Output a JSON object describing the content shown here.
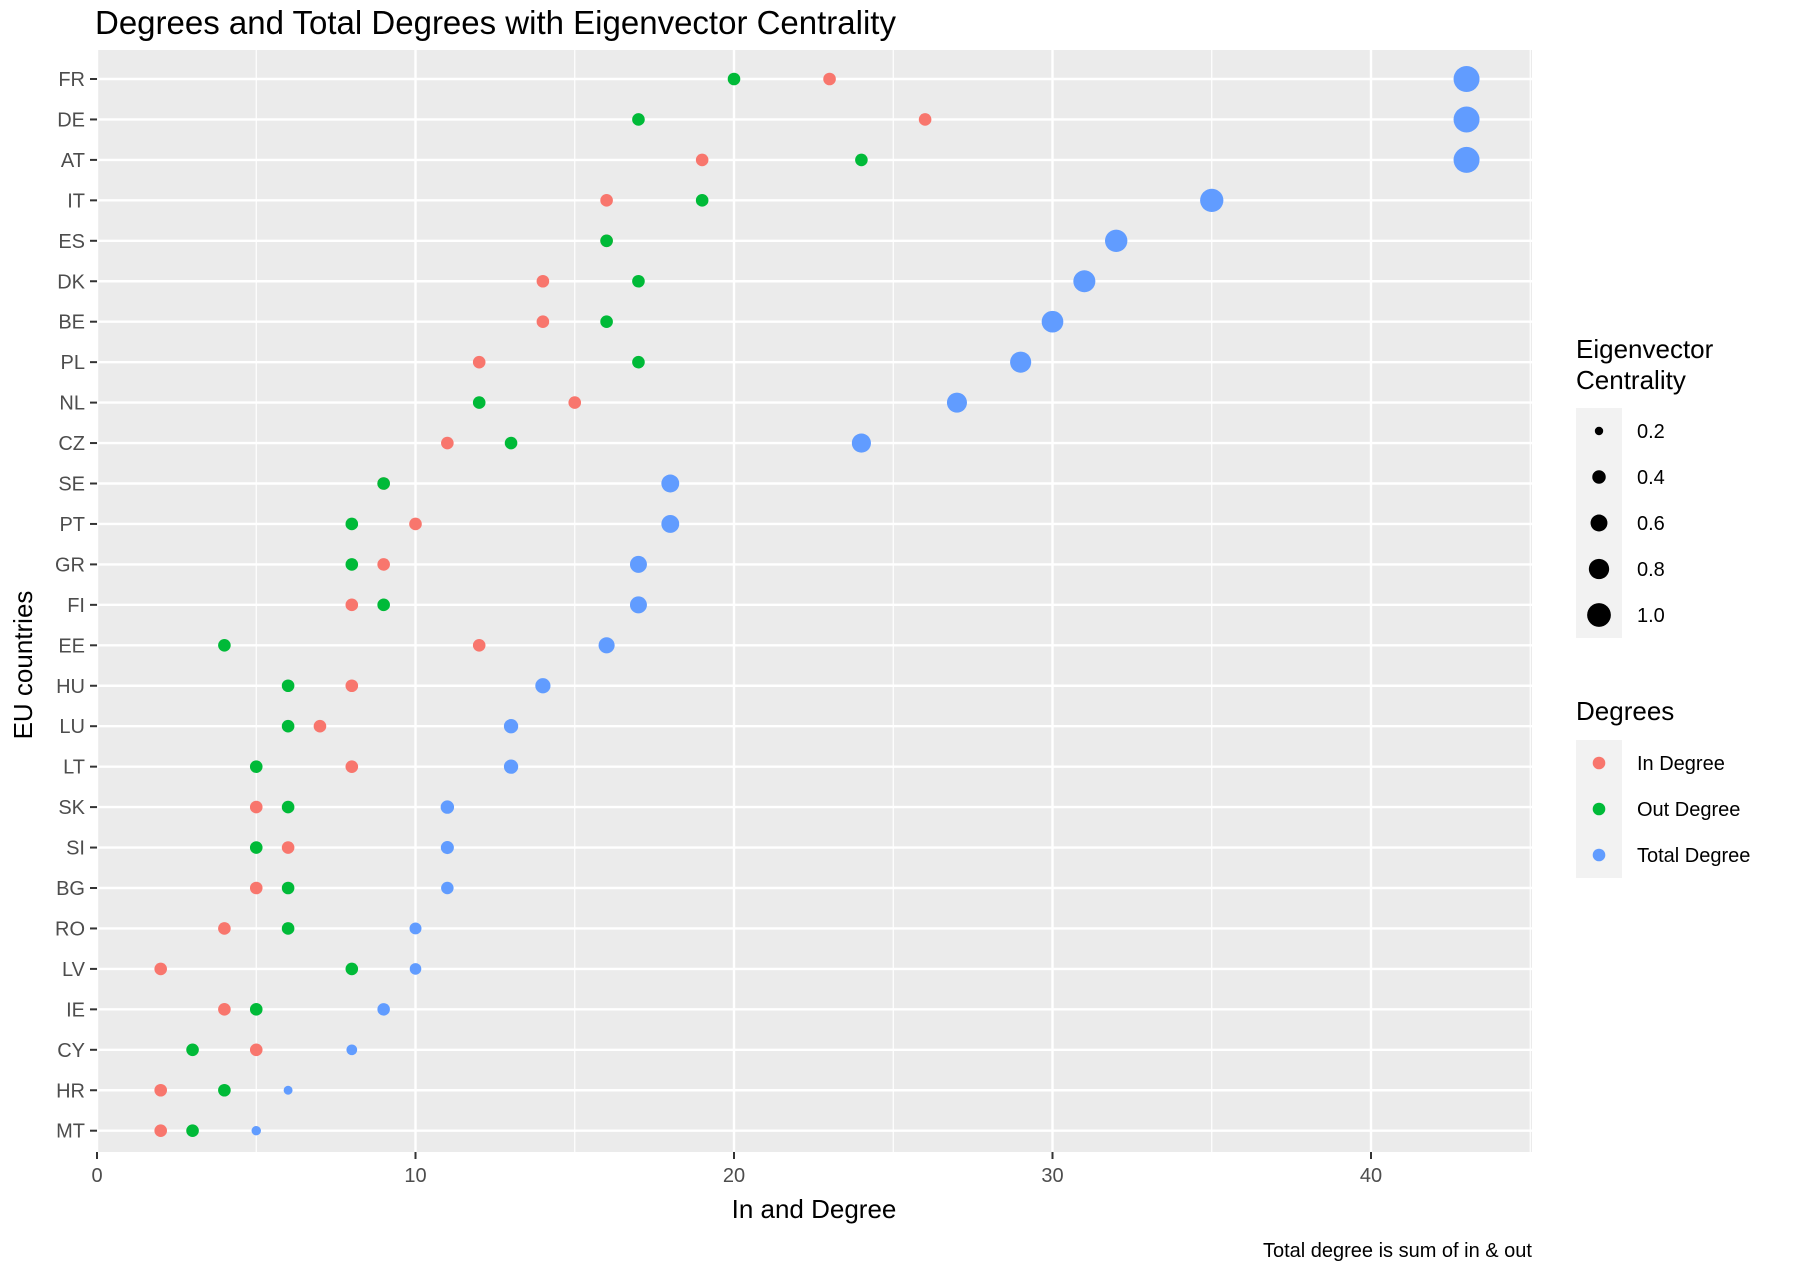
{
  "chart_data": {
    "type": "scatter",
    "title": "Degrees and Total Degrees with Eigenvector Centrality",
    "xlabel": "In and Degree",
    "ylabel": "EU countries",
    "caption": "Total degree is sum of in & out",
    "xlim": [
      0,
      45
    ],
    "xticks": [
      0,
      10,
      20,
      30,
      40
    ],
    "grid": true,
    "legend_position": "right",
    "categories": [
      "FR",
      "DE",
      "AT",
      "IT",
      "ES",
      "DK",
      "BE",
      "PL",
      "NL",
      "CZ",
      "SE",
      "PT",
      "GR",
      "FI",
      "EE",
      "HU",
      "LU",
      "LT",
      "SK",
      "SI",
      "BG",
      "RO",
      "LV",
      "IE",
      "CY",
      "HR",
      "MT"
    ],
    "series": [
      {
        "name": "In Degree",
        "color": "#F8766D",
        "values": [
          23,
          26,
          19,
          16,
          16,
          14,
          14,
          12,
          15,
          11,
          9,
          10,
          9,
          8,
          12,
          8,
          7,
          8,
          5,
          6,
          5,
          4,
          2,
          4,
          5,
          2,
          2
        ]
      },
      {
        "name": "Out Degree",
        "color": "#00BA38",
        "values": [
          20,
          17,
          24,
          19,
          16,
          17,
          16,
          17,
          12,
          13,
          9,
          8,
          8,
          9,
          4,
          6,
          6,
          5,
          6,
          5,
          6,
          6,
          8,
          5,
          3,
          4,
          3
        ]
      },
      {
        "name": "Total Degree",
        "color": "#619CFF",
        "values": [
          43,
          43,
          43,
          35,
          32,
          31,
          30,
          29,
          27,
          24,
          18,
          18,
          17,
          17,
          16,
          14,
          13,
          13,
          11,
          11,
          11,
          10,
          10,
          9,
          8,
          6,
          5
        ]
      }
    ],
    "eigenvector_centrality": [
      1.0,
      1.0,
      1.0,
      0.85,
      0.8,
      0.78,
      0.76,
      0.73,
      0.67,
      0.62,
      0.55,
      0.55,
      0.5,
      0.5,
      0.45,
      0.4,
      0.35,
      0.35,
      0.3,
      0.28,
      0.25,
      0.22,
      0.2,
      0.25,
      0.15,
      0.05,
      0.08
    ],
    "legend_size": {
      "title": "Eigenvector\nCentrality",
      "labels": [
        "0.2",
        "0.4",
        "0.6",
        "0.8",
        "1.0"
      ],
      "values": [
        0.2,
        0.4,
        0.6,
        0.8,
        1.0
      ]
    },
    "legend_color": {
      "title": "Degrees"
    },
    "colors": {
      "panel": "#EBEBEB",
      "grid_major": "#FFFFFF",
      "legend_key_bg": "#F2F2F2"
    }
  }
}
